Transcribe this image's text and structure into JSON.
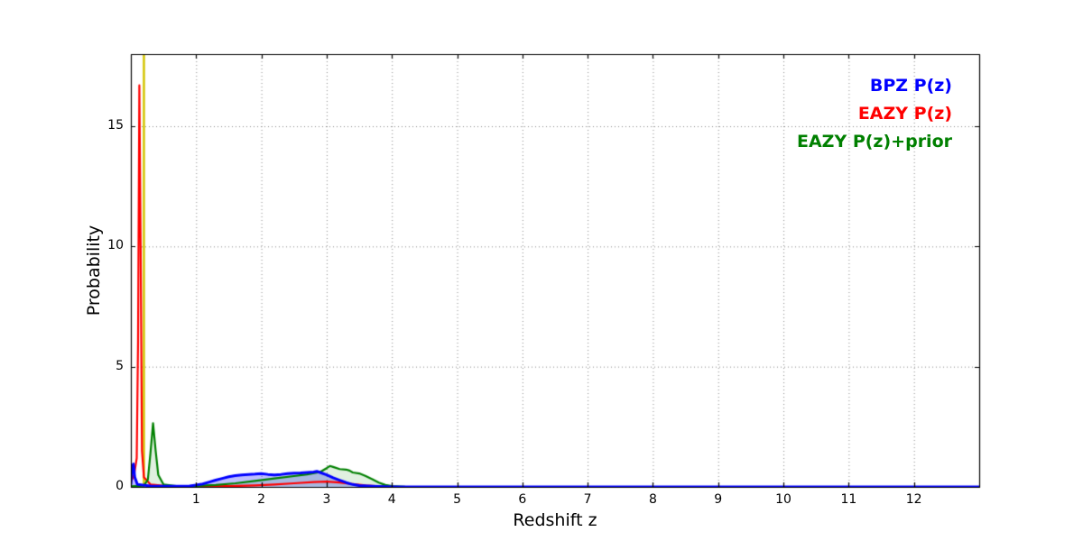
{
  "figure": {
    "background": "#ffffff"
  },
  "chart_data": {
    "type": "line",
    "title": "",
    "xlabel": "Redshift z",
    "ylabel": "Probability",
    "xlim": [
      0,
      13
    ],
    "ylim": [
      0,
      18
    ],
    "xticks": [
      1,
      2,
      3,
      4,
      5,
      6,
      7,
      8,
      9,
      10,
      11,
      12
    ],
    "yticks": [
      0,
      5,
      10,
      15
    ],
    "grid": "dotted",
    "grid_color": "#888888",
    "legend_position": "upper right",
    "vline": {
      "x": 0.2,
      "color": "#d4c400",
      "linewidth": 2.5
    },
    "series": [
      {
        "name": "BPZ P(z)",
        "color": "#0000ff",
        "fill": "rgba(0,0,255,0.25)",
        "linewidth": 3,
        "points": [
          [
            0,
            0.1
          ],
          [
            0.02,
            0.85
          ],
          [
            0.04,
            0.95
          ],
          [
            0.06,
            0.4
          ],
          [
            0.1,
            0.1
          ],
          [
            0.3,
            0.04
          ],
          [
            0.6,
            0.03
          ],
          [
            0.9,
            0.04
          ],
          [
            1.0,
            0.08
          ],
          [
            1.1,
            0.12
          ],
          [
            1.2,
            0.2
          ],
          [
            1.3,
            0.28
          ],
          [
            1.4,
            0.35
          ],
          [
            1.5,
            0.42
          ],
          [
            1.6,
            0.47
          ],
          [
            1.7,
            0.5
          ],
          [
            1.8,
            0.52
          ],
          [
            1.9,
            0.53
          ],
          [
            2.0,
            0.55
          ],
          [
            2.1,
            0.52
          ],
          [
            2.2,
            0.5
          ],
          [
            2.3,
            0.52
          ],
          [
            2.4,
            0.55
          ],
          [
            2.5,
            0.57
          ],
          [
            2.6,
            0.58
          ],
          [
            2.7,
            0.6
          ],
          [
            2.8,
            0.62
          ],
          [
            2.85,
            0.65
          ],
          [
            2.9,
            0.6
          ],
          [
            3.0,
            0.5
          ],
          [
            3.1,
            0.38
          ],
          [
            3.2,
            0.28
          ],
          [
            3.3,
            0.18
          ],
          [
            3.4,
            0.1
          ],
          [
            3.5,
            0.06
          ],
          [
            3.7,
            0.03
          ],
          [
            3.9,
            0.01
          ],
          [
            4.1,
            0
          ],
          [
            13,
            0
          ]
        ]
      },
      {
        "name": "EAZY P(z)",
        "color": "#ff0000",
        "fill": null,
        "linewidth": 2.2,
        "points": [
          [
            0,
            0.2
          ],
          [
            0.05,
            0.5
          ],
          [
            0.09,
            1.2
          ],
          [
            0.11,
            6
          ],
          [
            0.13,
            16.7
          ],
          [
            0.15,
            10
          ],
          [
            0.17,
            1.5
          ],
          [
            0.2,
            0.4
          ],
          [
            0.3,
            0.1
          ],
          [
            0.6,
            0.02
          ],
          [
            1.0,
            0.02
          ],
          [
            1.5,
            0.03
          ],
          [
            1.9,
            0.06
          ],
          [
            2.2,
            0.1
          ],
          [
            2.5,
            0.15
          ],
          [
            2.8,
            0.2
          ],
          [
            3.0,
            0.22
          ],
          [
            3.2,
            0.18
          ],
          [
            3.4,
            0.12
          ],
          [
            3.6,
            0.06
          ],
          [
            3.8,
            0.02
          ],
          [
            4.0,
            0
          ],
          [
            13,
            0
          ]
        ]
      },
      {
        "name": "EAZY P(z)+prior",
        "color": "#008000",
        "fill": "rgba(0,128,0,0.12)",
        "linewidth": 2.2,
        "points": [
          [
            0,
            0.02
          ],
          [
            0.2,
            0.05
          ],
          [
            0.26,
            0.3
          ],
          [
            0.3,
            1.4
          ],
          [
            0.34,
            2.65
          ],
          [
            0.38,
            1.5
          ],
          [
            0.42,
            0.5
          ],
          [
            0.5,
            0.1
          ],
          [
            0.7,
            0.03
          ],
          [
            1.0,
            0.04
          ],
          [
            1.3,
            0.08
          ],
          [
            1.6,
            0.15
          ],
          [
            1.9,
            0.25
          ],
          [
            2.2,
            0.35
          ],
          [
            2.5,
            0.45
          ],
          [
            2.7,
            0.52
          ],
          [
            2.9,
            0.62
          ],
          [
            3.0,
            0.78
          ],
          [
            3.05,
            0.87
          ],
          [
            3.1,
            0.83
          ],
          [
            3.2,
            0.74
          ],
          [
            3.3,
            0.72
          ],
          [
            3.35,
            0.68
          ],
          [
            3.4,
            0.6
          ],
          [
            3.5,
            0.56
          ],
          [
            3.6,
            0.45
          ],
          [
            3.7,
            0.32
          ],
          [
            3.8,
            0.18
          ],
          [
            3.9,
            0.08
          ],
          [
            4.0,
            0.03
          ],
          [
            4.2,
            0.01
          ],
          [
            4.5,
            0
          ],
          [
            13,
            0
          ]
        ]
      }
    ],
    "legend": [
      {
        "label": "BPZ P(z)",
        "color": "#0000ff"
      },
      {
        "label": "EAZY P(z)",
        "color": "#ff0000"
      },
      {
        "label": "EAZY P(z)+prior",
        "color": "#008000"
      }
    ]
  }
}
